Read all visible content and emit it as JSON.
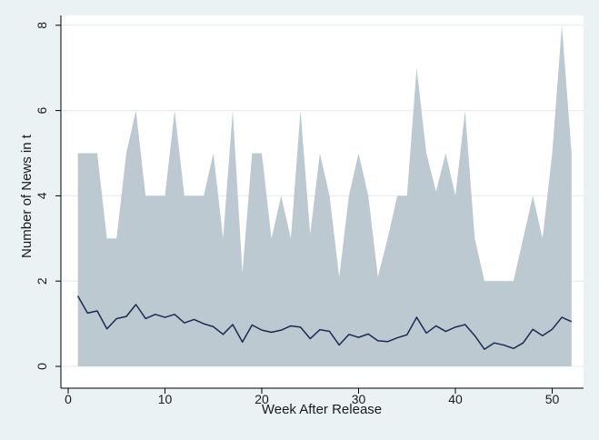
{
  "chart_data": {
    "type": "area",
    "title": "",
    "xlabel": "Week After Release",
    "ylabel": "Number of News in t",
    "xlim": [
      0,
      53
    ],
    "ylim": [
      0,
      8.4
    ],
    "x_ticks": [
      0,
      10,
      20,
      30,
      40,
      50
    ],
    "y_ticks": [
      0,
      2,
      4,
      6,
      8
    ],
    "grid": "horizontal",
    "legend": "none",
    "colors": {
      "area_fill": "#bcc9d1",
      "line": "#1b2a55",
      "plot_bg": "#ffffff",
      "outer_bg": "#eaf2f3",
      "grid": "#e3ebee"
    },
    "x": [
      1,
      2,
      3,
      4,
      5,
      6,
      7,
      8,
      9,
      10,
      11,
      12,
      13,
      14,
      15,
      16,
      17,
      18,
      19,
      20,
      21,
      22,
      23,
      24,
      25,
      26,
      27,
      28,
      29,
      30,
      31,
      32,
      33,
      34,
      35,
      36,
      37,
      38,
      39,
      40,
      41,
      42,
      43,
      44,
      45,
      46,
      47,
      48,
      49,
      50,
      51,
      52
    ],
    "series": [
      {
        "type": "area",
        "values": [
          5,
          5,
          5,
          3,
          3,
          5,
          6,
          4,
          4,
          4,
          6,
          4,
          4,
          4,
          5,
          3,
          6,
          2.2,
          5,
          5,
          3,
          4,
          3,
          6,
          3.1,
          5,
          4,
          2.1,
          4,
          5,
          4,
          2.1,
          3,
          4,
          4,
          7,
          5,
          4.1,
          5,
          4,
          6,
          3,
          2,
          2,
          2,
          2,
          3,
          4,
          3,
          5,
          8,
          5
        ]
      },
      {
        "type": "line",
        "values": [
          1.65,
          1.25,
          1.3,
          0.88,
          1.12,
          1.17,
          1.45,
          1.12,
          1.22,
          1.15,
          1.22,
          1.02,
          1.1,
          1.0,
          0.93,
          0.75,
          0.98,
          0.57,
          0.97,
          0.85,
          0.8,
          0.85,
          0.95,
          0.92,
          0.65,
          0.86,
          0.82,
          0.5,
          0.75,
          0.68,
          0.76,
          0.6,
          0.58,
          0.67,
          0.74,
          1.15,
          0.78,
          0.95,
          0.82,
          0.92,
          0.98,
          0.72,
          0.4,
          0.55,
          0.5,
          0.42,
          0.55,
          0.87,
          0.72,
          0.87,
          1.15,
          1.05
        ]
      }
    ]
  }
}
